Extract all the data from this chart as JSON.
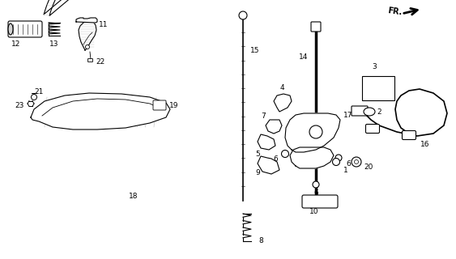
{
  "background_color": "#ffffff",
  "fig_width": 5.63,
  "fig_height": 3.2,
  "dpi": 100
}
